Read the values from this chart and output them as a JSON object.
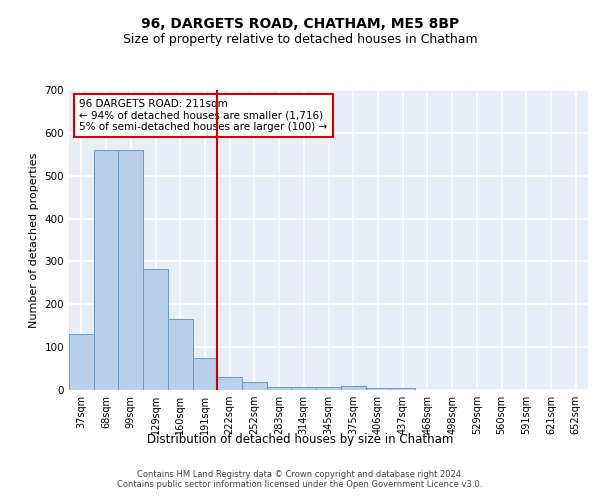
{
  "title": "96, DARGETS ROAD, CHATHAM, ME5 8BP",
  "subtitle": "Size of property relative to detached houses in Chatham",
  "xlabel": "Distribution of detached houses by size in Chatham",
  "ylabel": "Number of detached properties",
  "categories": [
    "37sqm",
    "68sqm",
    "99sqm",
    "129sqm",
    "160sqm",
    "191sqm",
    "222sqm",
    "252sqm",
    "283sqm",
    "314sqm",
    "345sqm",
    "375sqm",
    "406sqm",
    "437sqm",
    "468sqm",
    "498sqm",
    "529sqm",
    "560sqm",
    "591sqm",
    "621sqm",
    "652sqm"
  ],
  "values": [
    130,
    560,
    560,
    283,
    165,
    75,
    30,
    18,
    8,
    8,
    8,
    10,
    5,
    5,
    0,
    0,
    0,
    0,
    0,
    0,
    0
  ],
  "bar_color": "#b8d0ea",
  "bar_edge_color": "#6699cc",
  "vline_color": "#cc0000",
  "vline_pos": 5.5,
  "annotation_line1": "96 DARGETS ROAD: 211sqm",
  "annotation_line2": "← 94% of detached houses are smaller (1,716)",
  "annotation_line3": "5% of semi-detached houses are larger (100) →",
  "annotation_box_facecolor": "#ffffff",
  "annotation_box_edgecolor": "#cc0000",
  "ylim": [
    0,
    700
  ],
  "yticks": [
    0,
    100,
    200,
    300,
    400,
    500,
    600,
    700
  ],
  "background_color": "#e8eef8",
  "grid_color": "#ffffff",
  "title_fontsize": 10,
  "subtitle_fontsize": 9,
  "ylabel_fontsize": 8,
  "xlabel_fontsize": 8.5,
  "tick_fontsize": 7,
  "annotation_fontsize": 7.5,
  "footer_line1": "Contains HM Land Registry data © Crown copyright and database right 2024.",
  "footer_line2": "Contains public sector information licensed under the Open Government Licence v3.0.",
  "footer_fontsize": 6
}
